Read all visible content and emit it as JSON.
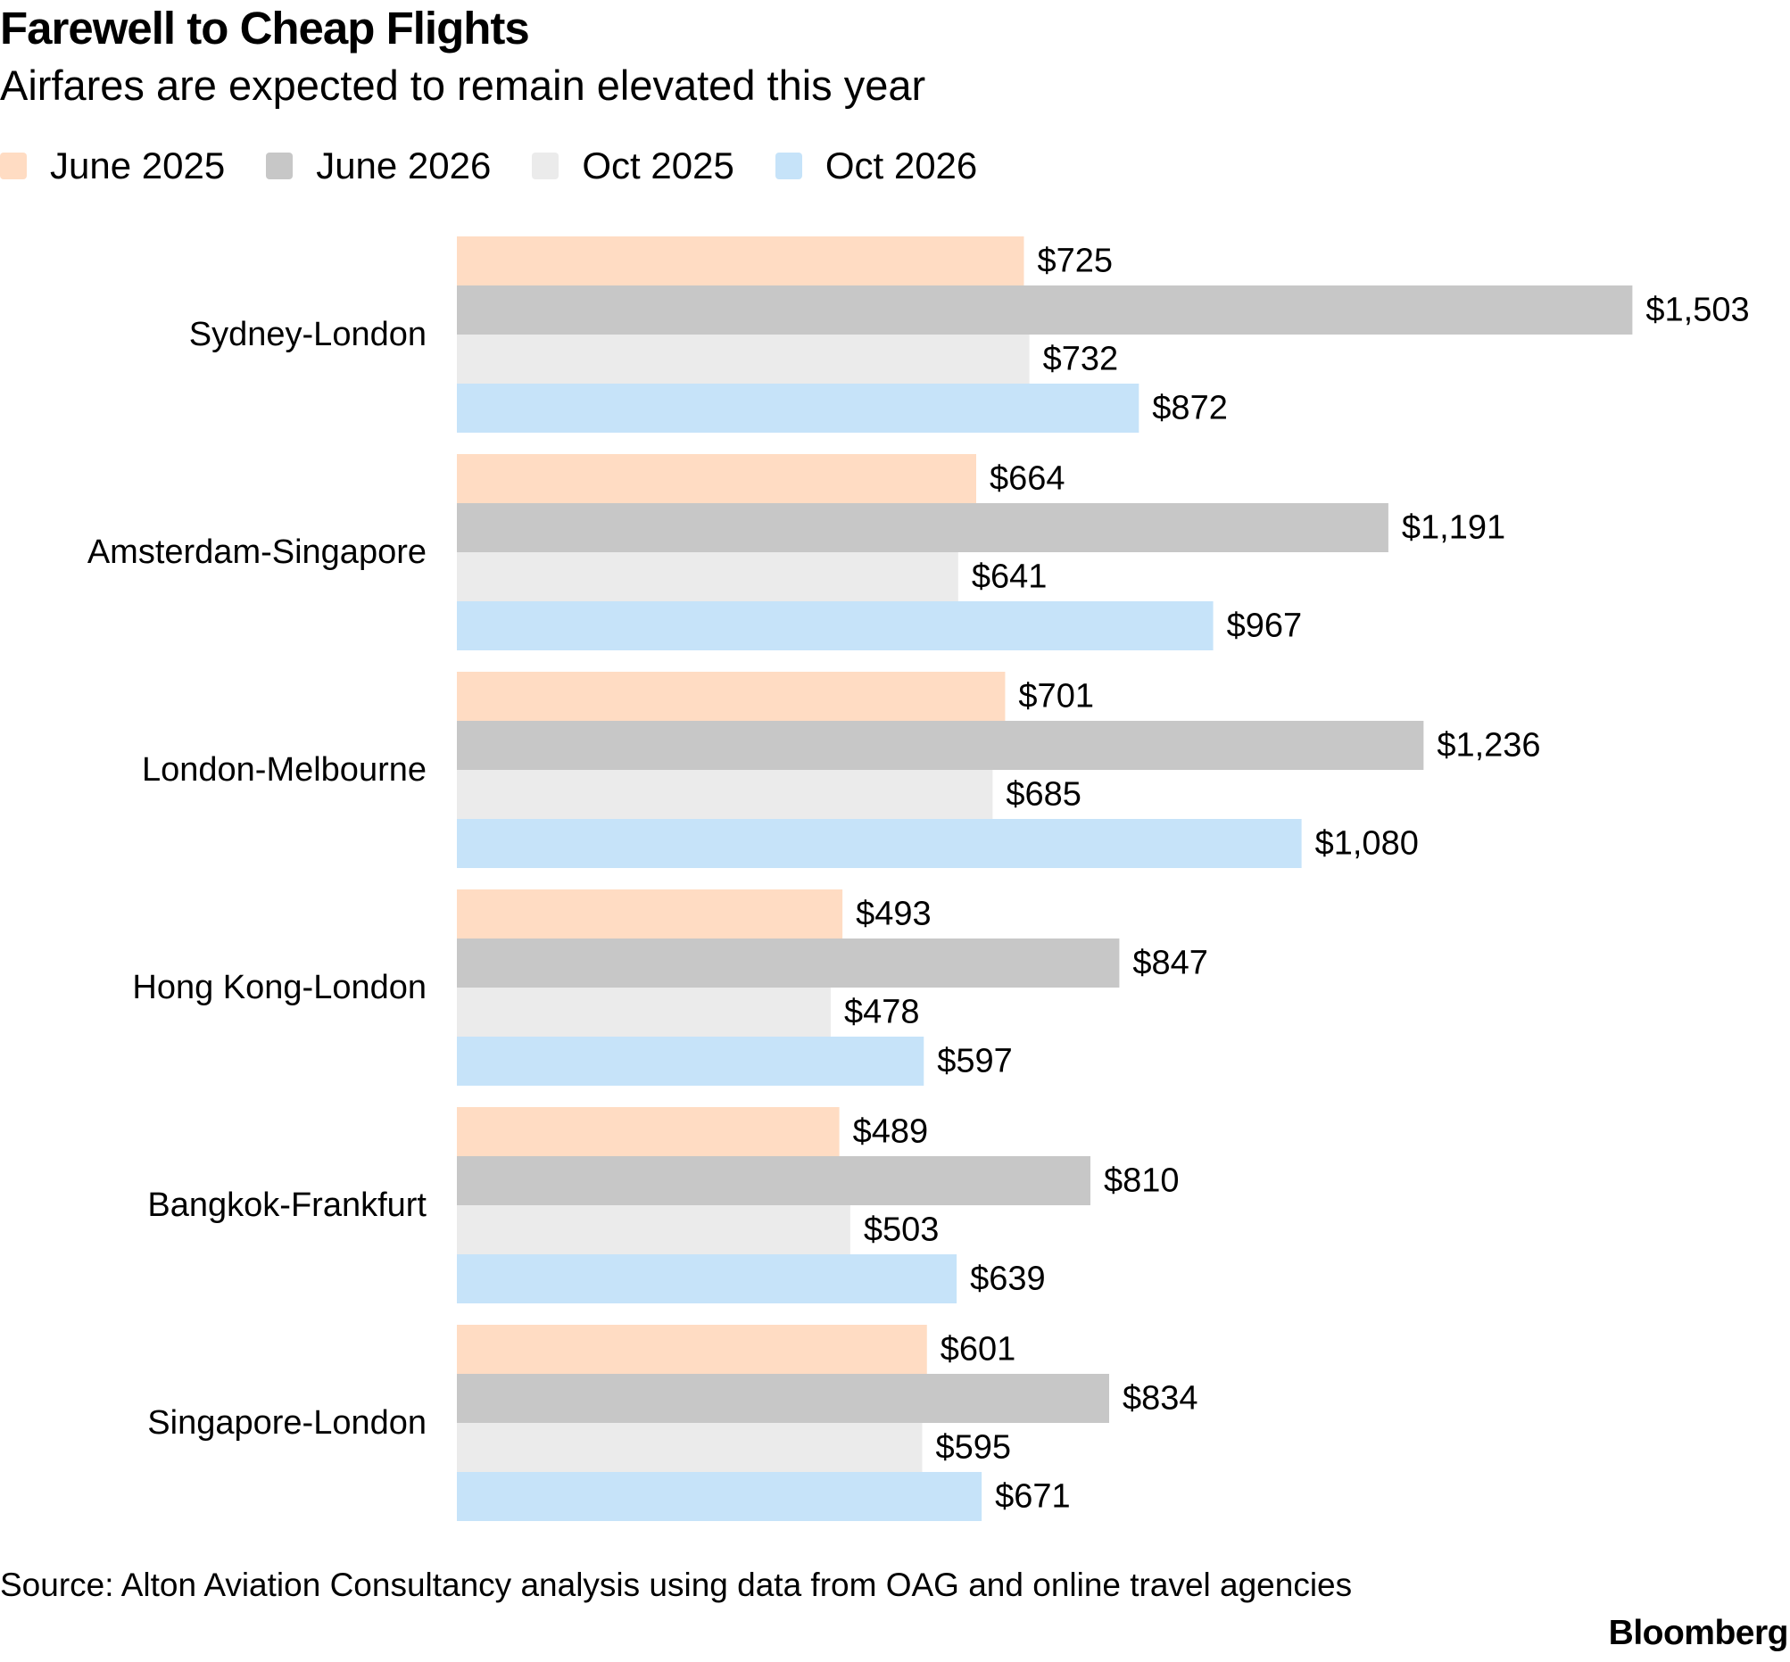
{
  "header": {
    "title": "Farewell to Cheap Flights",
    "subtitle": "Airfares are expected to remain elevated this year"
  },
  "chart_data": {
    "type": "bar",
    "orientation": "horizontal",
    "title": "Farewell to Cheap Flights",
    "subtitle": "Airfares are expected to remain elevated this year",
    "xlabel": "",
    "ylabel": "",
    "value_prefix": "$",
    "xlim": [
      0,
      1580
    ],
    "grid": false,
    "legend_position": "top-left",
    "categories": [
      "Sydney-London",
      "Amsterdam-Singapore",
      "London-Melbourne",
      "Hong Kong-London",
      "Bangkok-Frankfurt",
      "Singapore-London"
    ],
    "series": [
      {
        "name": "June 2025",
        "color": "#ffdcc3",
        "values": [
          725,
          664,
          701,
          493,
          489,
          601
        ],
        "labels": [
          "$725",
          "$664",
          "$701",
          "$493",
          "$489",
          "$601"
        ]
      },
      {
        "name": "June 2026",
        "color": "#c7c7c7",
        "values": [
          1503,
          1191,
          1236,
          847,
          810,
          834
        ],
        "labels": [
          "$1,503",
          "$1,191",
          "$1,236",
          "$847",
          "$810",
          "$834"
        ]
      },
      {
        "name": "Oct 2025",
        "color": "#ebebeb",
        "values": [
          732,
          641,
          685,
          478,
          503,
          595
        ],
        "labels": [
          "$732",
          "$641",
          "$685",
          "$478",
          "$503",
          "$595"
        ]
      },
      {
        "name": "Oct 2026",
        "color": "#c6e3f9",
        "values": [
          872,
          967,
          1080,
          597,
          639,
          671
        ],
        "labels": [
          "$872",
          "$967",
          "$1,080",
          "$597",
          "$639",
          "$671"
        ]
      }
    ]
  },
  "footer": {
    "source": "Source: Alton Aviation Consultancy analysis using data from OAG and online travel agencies",
    "brand": "Bloomberg"
  }
}
